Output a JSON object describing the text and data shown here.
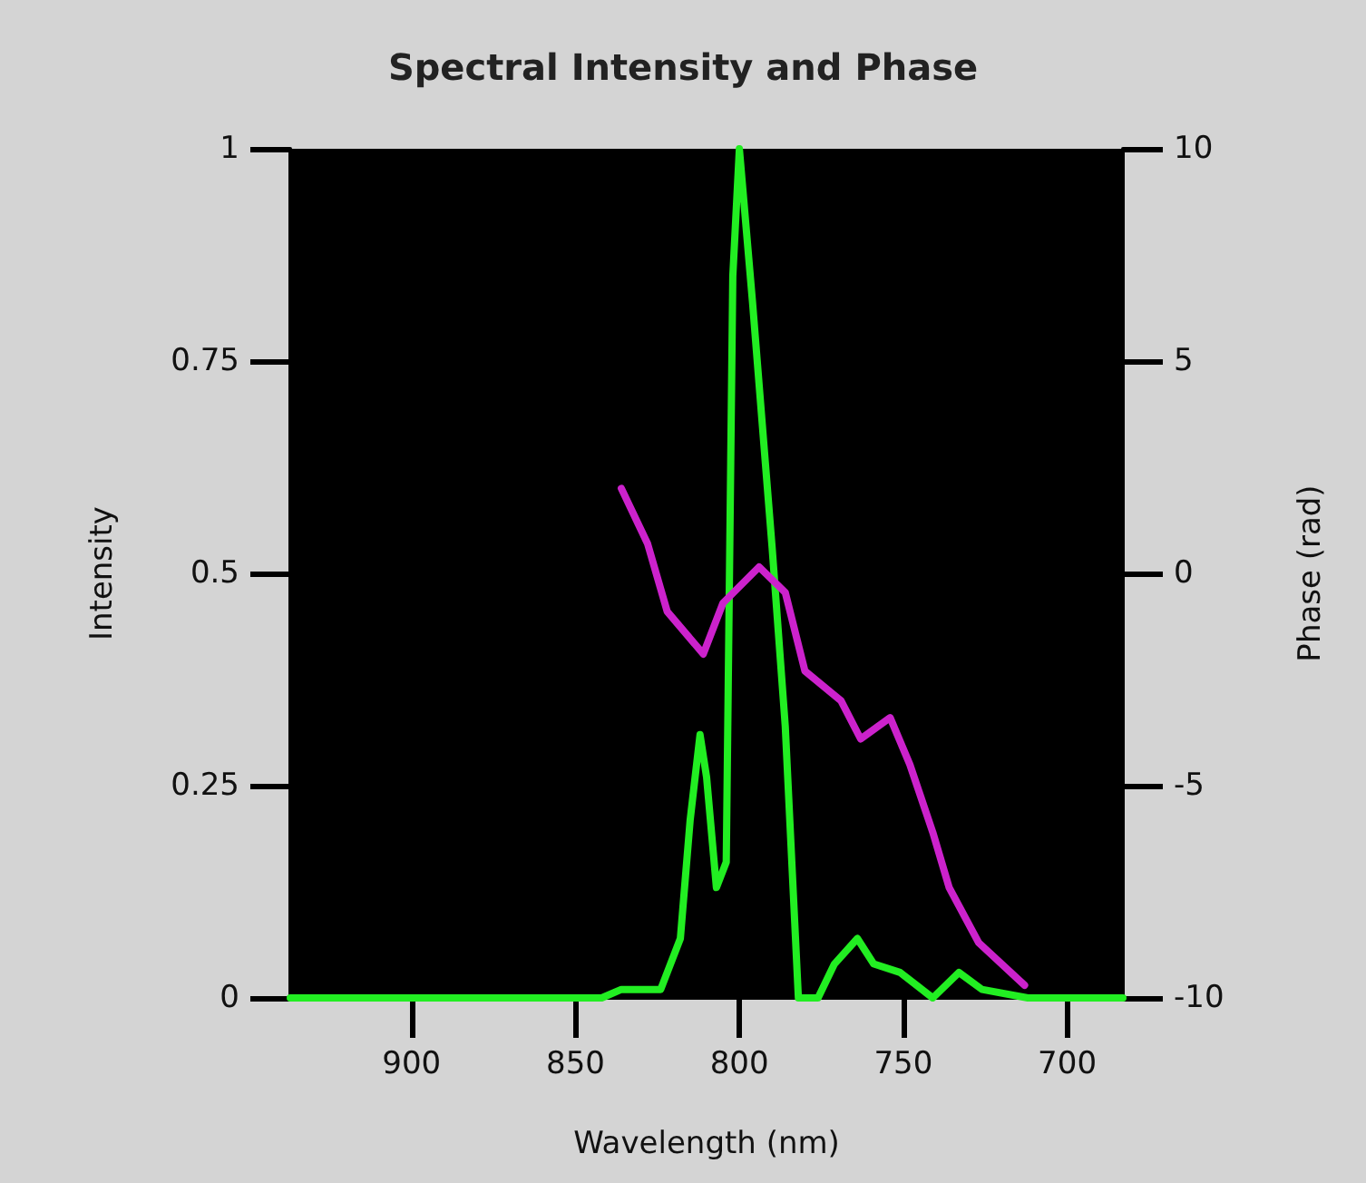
{
  "chart_data": {
    "type": "line",
    "title": "Spectral Intensity and Phase",
    "xlabel": "Wavelength (nm)",
    "ylabel": "Intensity",
    "y2label": "Phase (rad)",
    "xlim": [
      937,
      683
    ],
    "xticks": [
      900,
      850,
      800,
      750,
      700
    ],
    "ylim": [
      0,
      1
    ],
    "yticks": [
      0,
      0.25,
      0.5,
      0.75,
      1
    ],
    "y2lim": [
      -10,
      10
    ],
    "y2ticks": [
      -10,
      -5,
      0,
      5,
      10
    ],
    "grid": false,
    "marker": "none",
    "line_style": "solid",
    "series": [
      {
        "color": "#22ee22",
        "x": [
          937,
          842,
          836,
          824,
          818,
          815,
          812,
          810,
          807,
          804,
          802,
          800,
          796,
          790,
          786,
          782,
          776,
          771,
          764,
          759,
          751,
          741,
          733,
          726,
          712,
          683
        ],
        "values": [
          0,
          0,
          0.01,
          0.01,
          0.07,
          0.21,
          0.31,
          0.26,
          0.13,
          0.16,
          0.85,
          1,
          0.82,
          0.53,
          0.32,
          0,
          0,
          0.04,
          0.07,
          0.04,
          0.03,
          0,
          0.03,
          0.01,
          0,
          0
        ]
      },
      {
        "color": "#cc22cc",
        "axis": "y2",
        "x": [
          836,
          828,
          822,
          811,
          805,
          794,
          786,
          780,
          769,
          763,
          754,
          748,
          741,
          736,
          727,
          713
        ],
        "values": [
          2.0,
          0.7,
          -0.9,
          -1.9,
          -0.7,
          0.15,
          -0.45,
          -2.3,
          -3.0,
          -3.9,
          -3.4,
          -4.5,
          -6.1,
          -7.4,
          -8.7,
          -9.7
        ]
      }
    ]
  }
}
